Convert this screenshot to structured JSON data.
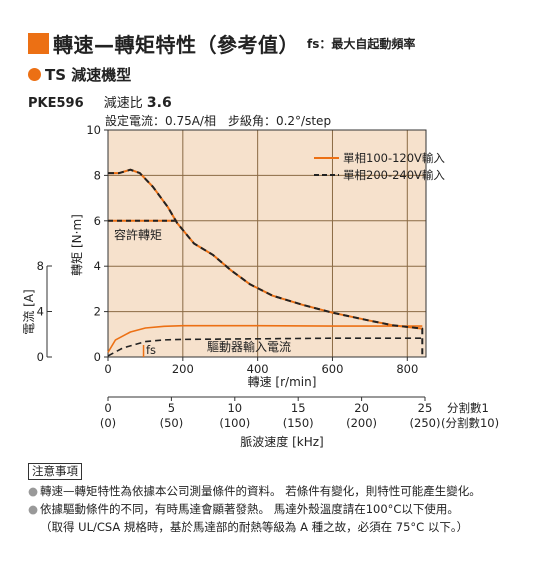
{
  "header": {
    "title": "轉速—轉矩特性（參考值）",
    "title_note": "fs：最大自起動頻率",
    "subtitle": "TS 減速機型",
    "model": "PKE596",
    "ratio_label": "減速比",
    "ratio_value": "3.6",
    "settings": "設定電流：0.75A/相　步級角：0.2°/step"
  },
  "colors": {
    "accent": "#ec7014",
    "grid_bg": "#f6e1cc",
    "grid_line": "#8a6a44"
  },
  "chart_data": {
    "type": "line",
    "xlabel": "轉速 [r/min]",
    "xlim": [
      0,
      850
    ],
    "x_ticks": [
      "0",
      "200",
      "400",
      "600",
      "800"
    ],
    "ylabel_torque": "轉矩 [N·m]",
    "ylim_torque": [
      0,
      10
    ],
    "y_ticks_torque": [
      "0",
      "2",
      "4",
      "6",
      "8",
      "10"
    ],
    "ylabel_current": "電流 [A]",
    "ylim_current": [
      0,
      8
    ],
    "y_ticks_current": [
      "0",
      "4",
      "8"
    ],
    "legend_placement": "top-right",
    "series": [
      {
        "name": "單相100-120V輸入",
        "color": "#ec7014",
        "style": "solid",
        "torque": [
          [
            0,
            8.1
          ],
          [
            30,
            8.1
          ],
          [
            60,
            8.25
          ],
          [
            85,
            8.1
          ],
          [
            120,
            7.5
          ],
          [
            160,
            6.6
          ],
          [
            185,
            5.9
          ],
          [
            230,
            5.0
          ],
          [
            280,
            4.5
          ],
          [
            330,
            3.8
          ],
          [
            380,
            3.2
          ],
          [
            440,
            2.7
          ],
          [
            520,
            2.3
          ],
          [
            600,
            1.95
          ],
          [
            700,
            1.6
          ],
          [
            760,
            1.4
          ],
          [
            840,
            1.25
          ]
        ],
        "current": [
          [
            0,
            0.4
          ],
          [
            20,
            1.5
          ],
          [
            60,
            2.2
          ],
          [
            100,
            2.55
          ],
          [
            150,
            2.7
          ],
          [
            200,
            2.75
          ],
          [
            400,
            2.75
          ],
          [
            600,
            2.72
          ],
          [
            800,
            2.72
          ],
          [
            840,
            2.72
          ]
        ]
      },
      {
        "name": "單相200-240V輸入",
        "color": "#222222",
        "style": "dashed",
        "torque": [
          [
            0,
            8.1
          ],
          [
            30,
            8.1
          ],
          [
            60,
            8.25
          ],
          [
            85,
            8.1
          ],
          [
            120,
            7.5
          ],
          [
            160,
            6.6
          ],
          [
            185,
            5.9
          ],
          [
            230,
            5.0
          ],
          [
            280,
            4.5
          ],
          [
            330,
            3.8
          ],
          [
            380,
            3.2
          ],
          [
            440,
            2.7
          ],
          [
            520,
            2.3
          ],
          [
            600,
            1.95
          ],
          [
            700,
            1.6
          ],
          [
            760,
            1.4
          ],
          [
            840,
            1.25
          ],
          [
            840,
            0
          ]
        ],
        "current": [
          [
            0,
            0.1
          ],
          [
            40,
            0.8
          ],
          [
            100,
            1.35
          ],
          [
            150,
            1.5
          ],
          [
            200,
            1.55
          ],
          [
            400,
            1.6
          ],
          [
            600,
            1.65
          ],
          [
            800,
            1.65
          ],
          [
            840,
            1.65
          ]
        ]
      }
    ],
    "permissible_torque": {
      "label": "容許轉矩",
      "value": 6,
      "x_range": [
        0,
        185
      ]
    },
    "fs_label": "fs",
    "fs_x": 95,
    "driver_current_label": "驅動器輸入電流",
    "pulse_axis": {
      "label": "脈波速度 [kHz]",
      "ticks": [
        "0",
        "5",
        "10",
        "15",
        "20",
        "25"
      ],
      "ticks_div10": [
        "(0)",
        "(50)",
        "(100)",
        "(150)",
        "(200)",
        "(250)"
      ],
      "div1_label": "分割數1",
      "div10_label": "(分割數10)"
    }
  },
  "notes": {
    "heading": "注意事項",
    "items": [
      "轉速—轉矩特性為依據本公司測量條件的資料。 若條件有變化，則特性可能產生變化。",
      "依據驅動條件的不同，有時馬達會顯著發熱。 馬達外殼溫度請在100°C以下使用。"
    ],
    "sub": "（取得 UL/CSA 規格時，基於馬達部的耐熱等級為 A 種之故，必須在 75°C 以下。）"
  }
}
